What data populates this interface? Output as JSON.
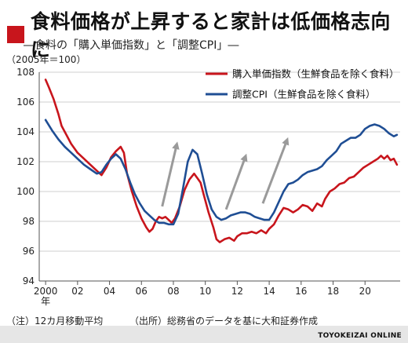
{
  "title": "食料価格が上昇すると家計は低価格志向に",
  "subtitle": "―食料の「購入単価指数」と「調整CPI」―",
  "unit": "（2005年＝100）",
  "note": "（注）12カ月移動平均",
  "source": "（出所）総務省のデータを基に大和証券作成",
  "brand": "TOYOKEIZAI ONLINE",
  "colors": {
    "accent": "#c8151c",
    "red_series": "#c8151c",
    "blue_series": "#1f4e94",
    "arrow": "#9a9a9a"
  },
  "chart_data": {
    "type": "line",
    "xlim": [
      1999.6,
      2022.2
    ],
    "ylim": [
      94,
      108
    ],
    "y_ticks": [
      94,
      96,
      98,
      100,
      102,
      104,
      106,
      108
    ],
    "x_tick_labels": [
      {
        "x": 2000,
        "label": "2000",
        "sub": "年"
      },
      {
        "x": 2002,
        "label": "02"
      },
      {
        "x": 2004,
        "label": "04"
      },
      {
        "x": 2006,
        "label": "06"
      },
      {
        "x": 2008,
        "label": "08"
      },
      {
        "x": 2010,
        "label": "10"
      },
      {
        "x": 2012,
        "label": "12"
      },
      {
        "x": 2014,
        "label": "14"
      },
      {
        "x": 2016,
        "label": "16"
      },
      {
        "x": 2018,
        "label": "18"
      },
      {
        "x": 2020,
        "label": "20"
      }
    ],
    "grid": "horizontal",
    "legend_position": "top-right",
    "series": [
      {
        "name": "購入単価指数（生鮮食品を除く食料）",
        "color": "#c8151c",
        "points": [
          [
            2000.0,
            107.5
          ],
          [
            2000.2,
            107.0
          ],
          [
            2000.5,
            106.2
          ],
          [
            2000.8,
            105.2
          ],
          [
            2001.0,
            104.4
          ],
          [
            2001.3,
            103.8
          ],
          [
            2001.6,
            103.2
          ],
          [
            2002.0,
            102.6
          ],
          [
            2002.4,
            102.2
          ],
          [
            2002.8,
            101.8
          ],
          [
            2003.2,
            101.4
          ],
          [
            2003.5,
            101.1
          ],
          [
            2003.8,
            101.6
          ],
          [
            2004.1,
            102.3
          ],
          [
            2004.4,
            102.7
          ],
          [
            2004.7,
            103.0
          ],
          [
            2004.9,
            102.6
          ],
          [
            2005.1,
            101.2
          ],
          [
            2005.4,
            100.0
          ],
          [
            2005.7,
            99.0
          ],
          [
            2006.0,
            98.2
          ],
          [
            2006.3,
            97.6
          ],
          [
            2006.5,
            97.3
          ],
          [
            2006.7,
            97.5
          ],
          [
            2006.9,
            98.0
          ],
          [
            2007.1,
            98.3
          ],
          [
            2007.3,
            98.2
          ],
          [
            2007.5,
            98.3
          ],
          [
            2007.7,
            98.1
          ],
          [
            2007.9,
            97.9
          ],
          [
            2008.1,
            98.2
          ],
          [
            2008.4,
            99.0
          ],
          [
            2008.7,
            100.1
          ],
          [
            2009.0,
            100.8
          ],
          [
            2009.3,
            101.2
          ],
          [
            2009.5,
            100.9
          ],
          [
            2009.7,
            100.6
          ],
          [
            2009.9,
            99.8
          ],
          [
            2010.2,
            98.6
          ],
          [
            2010.5,
            97.6
          ],
          [
            2010.7,
            96.8
          ],
          [
            2010.9,
            96.6
          ],
          [
            2011.2,
            96.8
          ],
          [
            2011.5,
            96.9
          ],
          [
            2011.8,
            96.7
          ],
          [
            2012.0,
            97.0
          ],
          [
            2012.3,
            97.2
          ],
          [
            2012.6,
            97.2
          ],
          [
            2012.9,
            97.3
          ],
          [
            2013.2,
            97.2
          ],
          [
            2013.5,
            97.4
          ],
          [
            2013.8,
            97.2
          ],
          [
            2014.0,
            97.5
          ],
          [
            2014.3,
            97.8
          ],
          [
            2014.6,
            98.4
          ],
          [
            2014.9,
            98.9
          ],
          [
            2015.2,
            98.8
          ],
          [
            2015.5,
            98.6
          ],
          [
            2015.8,
            98.8
          ],
          [
            2016.1,
            99.1
          ],
          [
            2016.4,
            99.0
          ],
          [
            2016.7,
            98.7
          ],
          [
            2017.0,
            99.2
          ],
          [
            2017.3,
            99.0
          ],
          [
            2017.5,
            99.5
          ],
          [
            2017.8,
            100.0
          ],
          [
            2018.1,
            100.2
          ],
          [
            2018.4,
            100.5
          ],
          [
            2018.7,
            100.6
          ],
          [
            2019.0,
            100.9
          ],
          [
            2019.3,
            101.0
          ],
          [
            2019.6,
            101.3
          ],
          [
            2019.9,
            101.6
          ],
          [
            2020.2,
            101.8
          ],
          [
            2020.5,
            102.0
          ],
          [
            2020.8,
            102.2
          ],
          [
            2021.0,
            102.4
          ],
          [
            2021.2,
            102.2
          ],
          [
            2021.4,
            102.4
          ],
          [
            2021.6,
            102.1
          ],
          [
            2021.8,
            102.2
          ],
          [
            2022.0,
            101.8
          ]
        ]
      },
      {
        "name": "調整CPI（生鮮食品を除く食料）",
        "color": "#1f4e94",
        "points": [
          [
            2000.0,
            104.8
          ],
          [
            2000.4,
            104.1
          ],
          [
            2000.8,
            103.5
          ],
          [
            2001.2,
            103.0
          ],
          [
            2001.6,
            102.6
          ],
          [
            2002.0,
            102.2
          ],
          [
            2002.4,
            101.8
          ],
          [
            2002.8,
            101.5
          ],
          [
            2003.2,
            101.2
          ],
          [
            2003.5,
            101.3
          ],
          [
            2003.8,
            101.8
          ],
          [
            2004.1,
            102.2
          ],
          [
            2004.4,
            102.5
          ],
          [
            2004.7,
            102.2
          ],
          [
            2005.0,
            101.5
          ],
          [
            2005.3,
            100.6
          ],
          [
            2005.6,
            99.8
          ],
          [
            2005.9,
            99.2
          ],
          [
            2006.2,
            98.7
          ],
          [
            2006.5,
            98.4
          ],
          [
            2006.8,
            98.1
          ],
          [
            2007.1,
            97.9
          ],
          [
            2007.4,
            97.9
          ],
          [
            2007.7,
            97.8
          ],
          [
            2008.0,
            97.8
          ],
          [
            2008.3,
            98.5
          ],
          [
            2008.6,
            100.2
          ],
          [
            2008.9,
            102.0
          ],
          [
            2009.2,
            102.8
          ],
          [
            2009.5,
            102.5
          ],
          [
            2009.8,
            101.2
          ],
          [
            2010.1,
            99.8
          ],
          [
            2010.4,
            98.8
          ],
          [
            2010.7,
            98.3
          ],
          [
            2011.0,
            98.1
          ],
          [
            2011.3,
            98.2
          ],
          [
            2011.6,
            98.4
          ],
          [
            2011.9,
            98.5
          ],
          [
            2012.2,
            98.6
          ],
          [
            2012.5,
            98.6
          ],
          [
            2012.8,
            98.5
          ],
          [
            2013.1,
            98.3
          ],
          [
            2013.4,
            98.2
          ],
          [
            2013.7,
            98.1
          ],
          [
            2014.0,
            98.1
          ],
          [
            2014.3,
            98.6
          ],
          [
            2014.6,
            99.3
          ],
          [
            2014.9,
            100.0
          ],
          [
            2015.2,
            100.5
          ],
          [
            2015.5,
            100.6
          ],
          [
            2015.8,
            100.8
          ],
          [
            2016.1,
            101.1
          ],
          [
            2016.4,
            101.3
          ],
          [
            2016.7,
            101.4
          ],
          [
            2017.0,
            101.5
          ],
          [
            2017.3,
            101.7
          ],
          [
            2017.6,
            102.1
          ],
          [
            2017.9,
            102.4
          ],
          [
            2018.2,
            102.7
          ],
          [
            2018.5,
            103.2
          ],
          [
            2018.8,
            103.4
          ],
          [
            2019.1,
            103.6
          ],
          [
            2019.4,
            103.6
          ],
          [
            2019.7,
            103.8
          ],
          [
            2020.0,
            104.2
          ],
          [
            2020.3,
            104.4
          ],
          [
            2020.6,
            104.5
          ],
          [
            2020.9,
            104.4
          ],
          [
            2021.2,
            104.2
          ],
          [
            2021.5,
            103.9
          ],
          [
            2021.8,
            103.7
          ],
          [
            2022.0,
            103.8
          ]
        ]
      }
    ],
    "arrows": [
      {
        "from": [
          2007.3,
          99.0
        ],
        "to": [
          2008.2,
          103.1
        ]
      },
      {
        "from": [
          2011.3,
          98.8
        ],
        "to": [
          2012.5,
          102.3
        ]
      },
      {
        "from": [
          2013.6,
          99.2
        ],
        "to": [
          2015.1,
          103.4
        ]
      }
    ]
  }
}
